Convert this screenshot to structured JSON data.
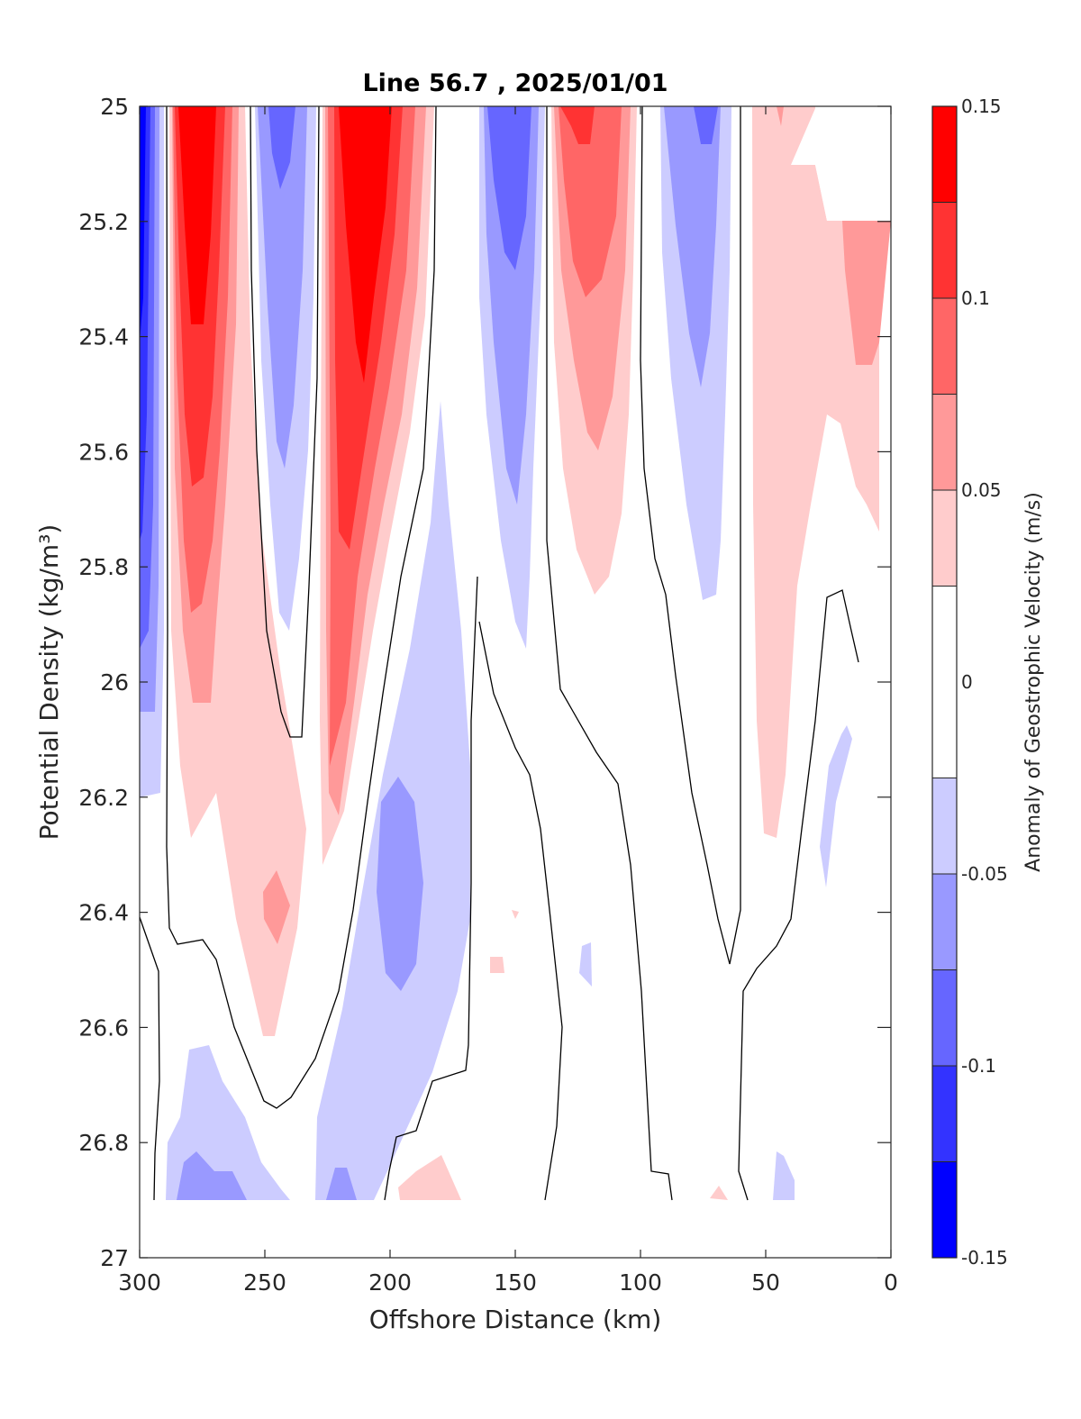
{
  "chart_data": {
    "type": "heatmap",
    "subtype": "filled-contour",
    "title": "Line 56.7 , 2025/01/01",
    "xlabel": "Offshore Distance (km)",
    "ylabel": "Potential Density (kg/m³)",
    "colorbar_label": "Anomaly of Geostrophic Velocity (m/s)",
    "xlim": [
      300,
      0
    ],
    "ylim": [
      25,
      27
    ],
    "x_reversed": true,
    "y_reversed": true,
    "xticks": [
      300,
      250,
      200,
      150,
      100,
      50,
      0
    ],
    "yticks": [
      25,
      25.2,
      25.4,
      25.6,
      25.8,
      26,
      26.2,
      26.4,
      26.6,
      26.8,
      27
    ],
    "colorbar_ticks": [
      "0.15",
      "0.1",
      "0.05",
      "0",
      "-0.05",
      "-0.1",
      "-0.15"
    ],
    "colorbar_levels": [
      -0.15,
      -0.125,
      -0.1,
      -0.075,
      -0.05,
      -0.025,
      0.025,
      0.05,
      0.075,
      0.1,
      0.125,
      0.15
    ],
    "colorbar_colors": [
      "#0000ff",
      "#3333ff",
      "#6666ff",
      "#9999ff",
      "#ccccff",
      "#ffffff",
      "#ffcccc",
      "#ff9999",
      "#ff6666",
      "#ff3333",
      "#ff0000"
    ],
    "grid": false,
    "features": [
      {
        "name": "coastal-negative-core",
        "x_center": 295,
        "sigma_top": 25,
        "sigma_bottom": 26.2,
        "peak": -0.15
      },
      {
        "name": "positive-jet-280",
        "x_center": 275,
        "sigma_top": 25,
        "sigma_bottom": 26.3,
        "peak": 0.14
      },
      {
        "name": "negative-band-245",
        "x_center": 243,
        "sigma_top": 25,
        "sigma_bottom": 25.9,
        "peak": -0.09
      },
      {
        "name": "positive-jet-210",
        "x_center": 210,
        "sigma_top": 25,
        "sigma_bottom": 26.2,
        "peak": 0.15
      },
      {
        "name": "negative-band-150",
        "x_center": 150,
        "sigma_top": 25,
        "sigma_bottom": 25.95,
        "peak": -0.09
      },
      {
        "name": "positive-band-120",
        "x_center": 122,
        "sigma_top": 25,
        "sigma_bottom": 25.8,
        "peak": 0.1
      },
      {
        "name": "negative-band-80",
        "x_center": 78,
        "sigma_top": 25,
        "sigma_bottom": 25.85,
        "peak": -0.07
      },
      {
        "name": "positive-shelf-30",
        "x_center": 30,
        "sigma_top": 25,
        "sigma_bottom": 26.25,
        "peak": 0.06
      },
      {
        "name": "deep-negative-200",
        "x_center": 195,
        "sigma_top": 25.6,
        "sigma_bottom": 26.9,
        "peak": -0.07
      },
      {
        "name": "deep-positive-245",
        "x_center": 245,
        "sigma_top": 26.2,
        "sigma_bottom": 26.65,
        "peak": 0.06
      }
    ]
  }
}
